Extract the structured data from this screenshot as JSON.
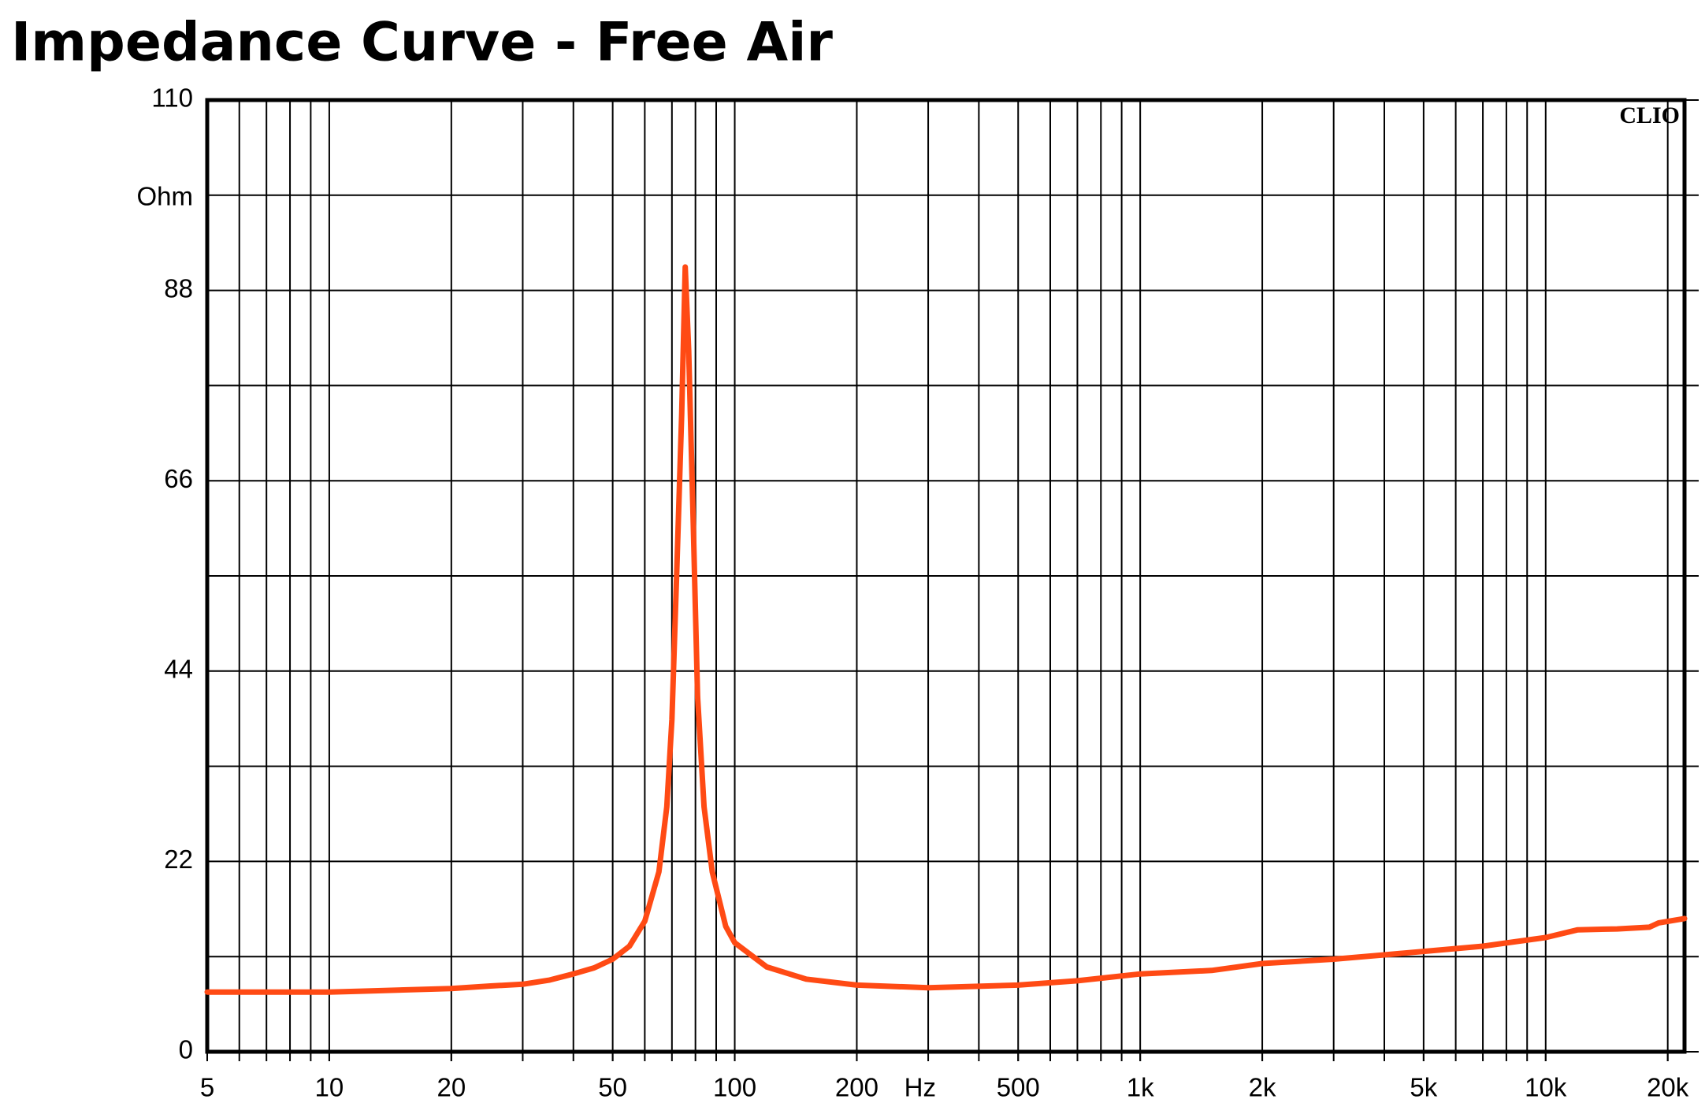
{
  "chart_data": {
    "type": "line",
    "title": "Impedance Curve - Free Air",
    "watermark": "CLIO",
    "y_axis_label": "Ohm",
    "x_axis_label": "Hz",
    "xscale": "log",
    "grid": true,
    "xlim": [
      5,
      22000
    ],
    "ylim": [
      0,
      110
    ],
    "xticks": [
      5,
      6,
      7,
      8,
      9,
      10,
      20,
      30,
      40,
      50,
      60,
      70,
      80,
      90,
      100,
      200,
      300,
      400,
      500,
      600,
      700,
      800,
      900,
      {
        "value": 1000,
        "label": "1k"
      },
      {
        "value": 2000,
        "label": "2k"
      },
      3000,
      4000,
      {
        "value": 5000,
        "label": "5k"
      },
      6000,
      7000,
      8000,
      9000,
      {
        "value": 10000,
        "label": "10k"
      },
      {
        "value": 20000,
        "label": "20k"
      }
    ],
    "xtick_labels_shown": [
      5,
      10,
      20,
      50,
      100,
      200,
      500,
      1000,
      2000,
      5000,
      10000,
      20000
    ],
    "yticks": [
      0,
      {
        "value": 11,
        "label": null
      },
      22,
      {
        "value": 33,
        "label": null
      },
      44,
      {
        "value": 55,
        "label": null
      },
      66,
      {
        "value": 77,
        "label": null
      },
      88,
      {
        "value": 99,
        "label": null
      },
      110
    ],
    "series": [
      {
        "name": "Impedance",
        "color": "#ff4a14",
        "x": [
          5,
          10,
          12,
          20,
          25,
          30,
          35,
          40,
          45,
          50,
          55,
          60,
          65,
          68,
          70,
          72,
          74,
          75.5,
          77,
          79,
          81,
          84,
          88,
          95,
          100,
          120,
          150,
          200,
          300,
          500,
          700,
          1000,
          1500,
          2000,
          3000,
          4000,
          5000,
          7000,
          10000,
          12000,
          15000,
          18000,
          19000,
          22000
        ],
        "values": [
          6.9,
          6.9,
          7.0,
          7.3,
          7.6,
          7.8,
          8.3,
          9.0,
          9.7,
          10.7,
          12.2,
          15.1,
          20.8,
          28.3,
          38.4,
          56,
          73.7,
          90.7,
          81,
          61,
          41,
          28.3,
          20.8,
          14.5,
          12.6,
          9.8,
          8.4,
          7.7,
          7.4,
          7.7,
          8.2,
          9.0,
          9.4,
          10.2,
          10.7,
          11.2,
          11.6,
          12.2,
          13.2,
          14.1,
          14.2,
          14.4,
          14.9,
          15.4
        ]
      }
    ]
  }
}
